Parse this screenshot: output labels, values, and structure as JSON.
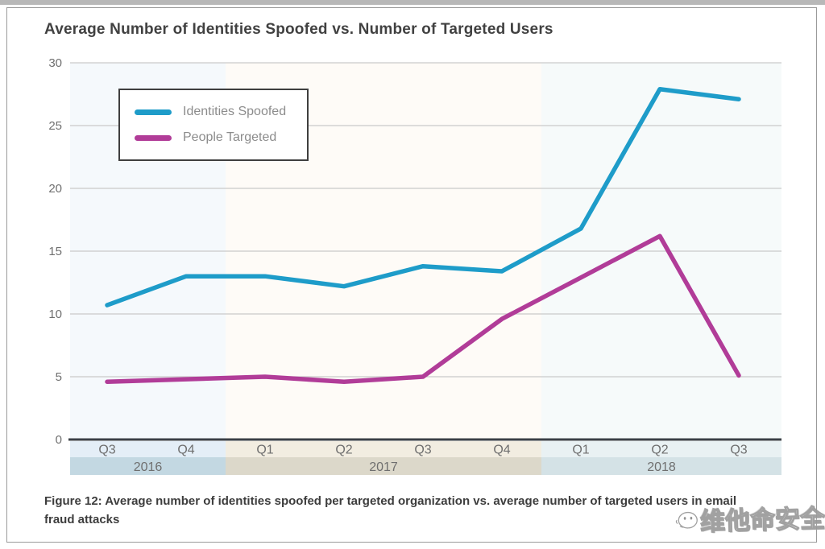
{
  "page": {
    "title": "Average Number of Identities Spoofed vs. Number of Targeted Users"
  },
  "legend": {
    "items": [
      {
        "label": "Identities Spoofed",
        "color": "#1E9CC9"
      },
      {
        "label": "People Targeted",
        "color": "#B13C98"
      }
    ]
  },
  "caption": {
    "text": "Figure 12: Average number of identities spoofed per targeted organization vs. average number of targeted users in email fraud attacks"
  },
  "watermark": {
    "icon": "chat-face-logo",
    "text": "维他命安全"
  },
  "chart_data": {
    "type": "line",
    "title": "Average Number of Identities Spoofed vs. Number of Targeted Users",
    "x": [
      "Q3",
      "Q4",
      "Q1",
      "Q2",
      "Q3",
      "Q4",
      "Q1",
      "Q2",
      "Q3"
    ],
    "year_groups": [
      {
        "label": "2016",
        "quarters": 2,
        "plot_fill": "#edf4fa",
        "quarter_row_fill": "#e4eef7",
        "year_row_fill": "#c3d8e2"
      },
      {
        "label": "2017",
        "quarters": 4,
        "plot_fill": "#fdf7f1",
        "quarter_row_fill": "#f2ede1",
        "year_row_fill": "#dcd8ca"
      },
      {
        "label": "2018",
        "quarters": 3,
        "plot_fill": "#eff5f5",
        "quarter_row_fill": "#e9f1f3",
        "year_row_fill": "#d4e2e6"
      }
    ],
    "series": [
      {
        "name": "Identities Spoofed",
        "color": "#1E9CC9",
        "values": [
          10.7,
          13.0,
          13.0,
          12.2,
          13.8,
          13.4,
          16.8,
          27.9,
          27.1
        ]
      },
      {
        "name": "People Targeted",
        "color": "#B13C98",
        "values": [
          4.6,
          4.8,
          5.0,
          4.6,
          5.0,
          9.6,
          12.9,
          16.2,
          5.1
        ]
      }
    ],
    "ylim": [
      0,
      30
    ],
    "yticks": [
      0,
      5,
      10,
      15,
      20,
      25,
      30
    ],
    "xlabel": "",
    "ylabel": "",
    "grid": true,
    "legend_position": "top-left",
    "colors": {
      "gridline": "#c9c9c9",
      "axis": "#3b4046",
      "tick_text": "#6f6f6f"
    }
  }
}
